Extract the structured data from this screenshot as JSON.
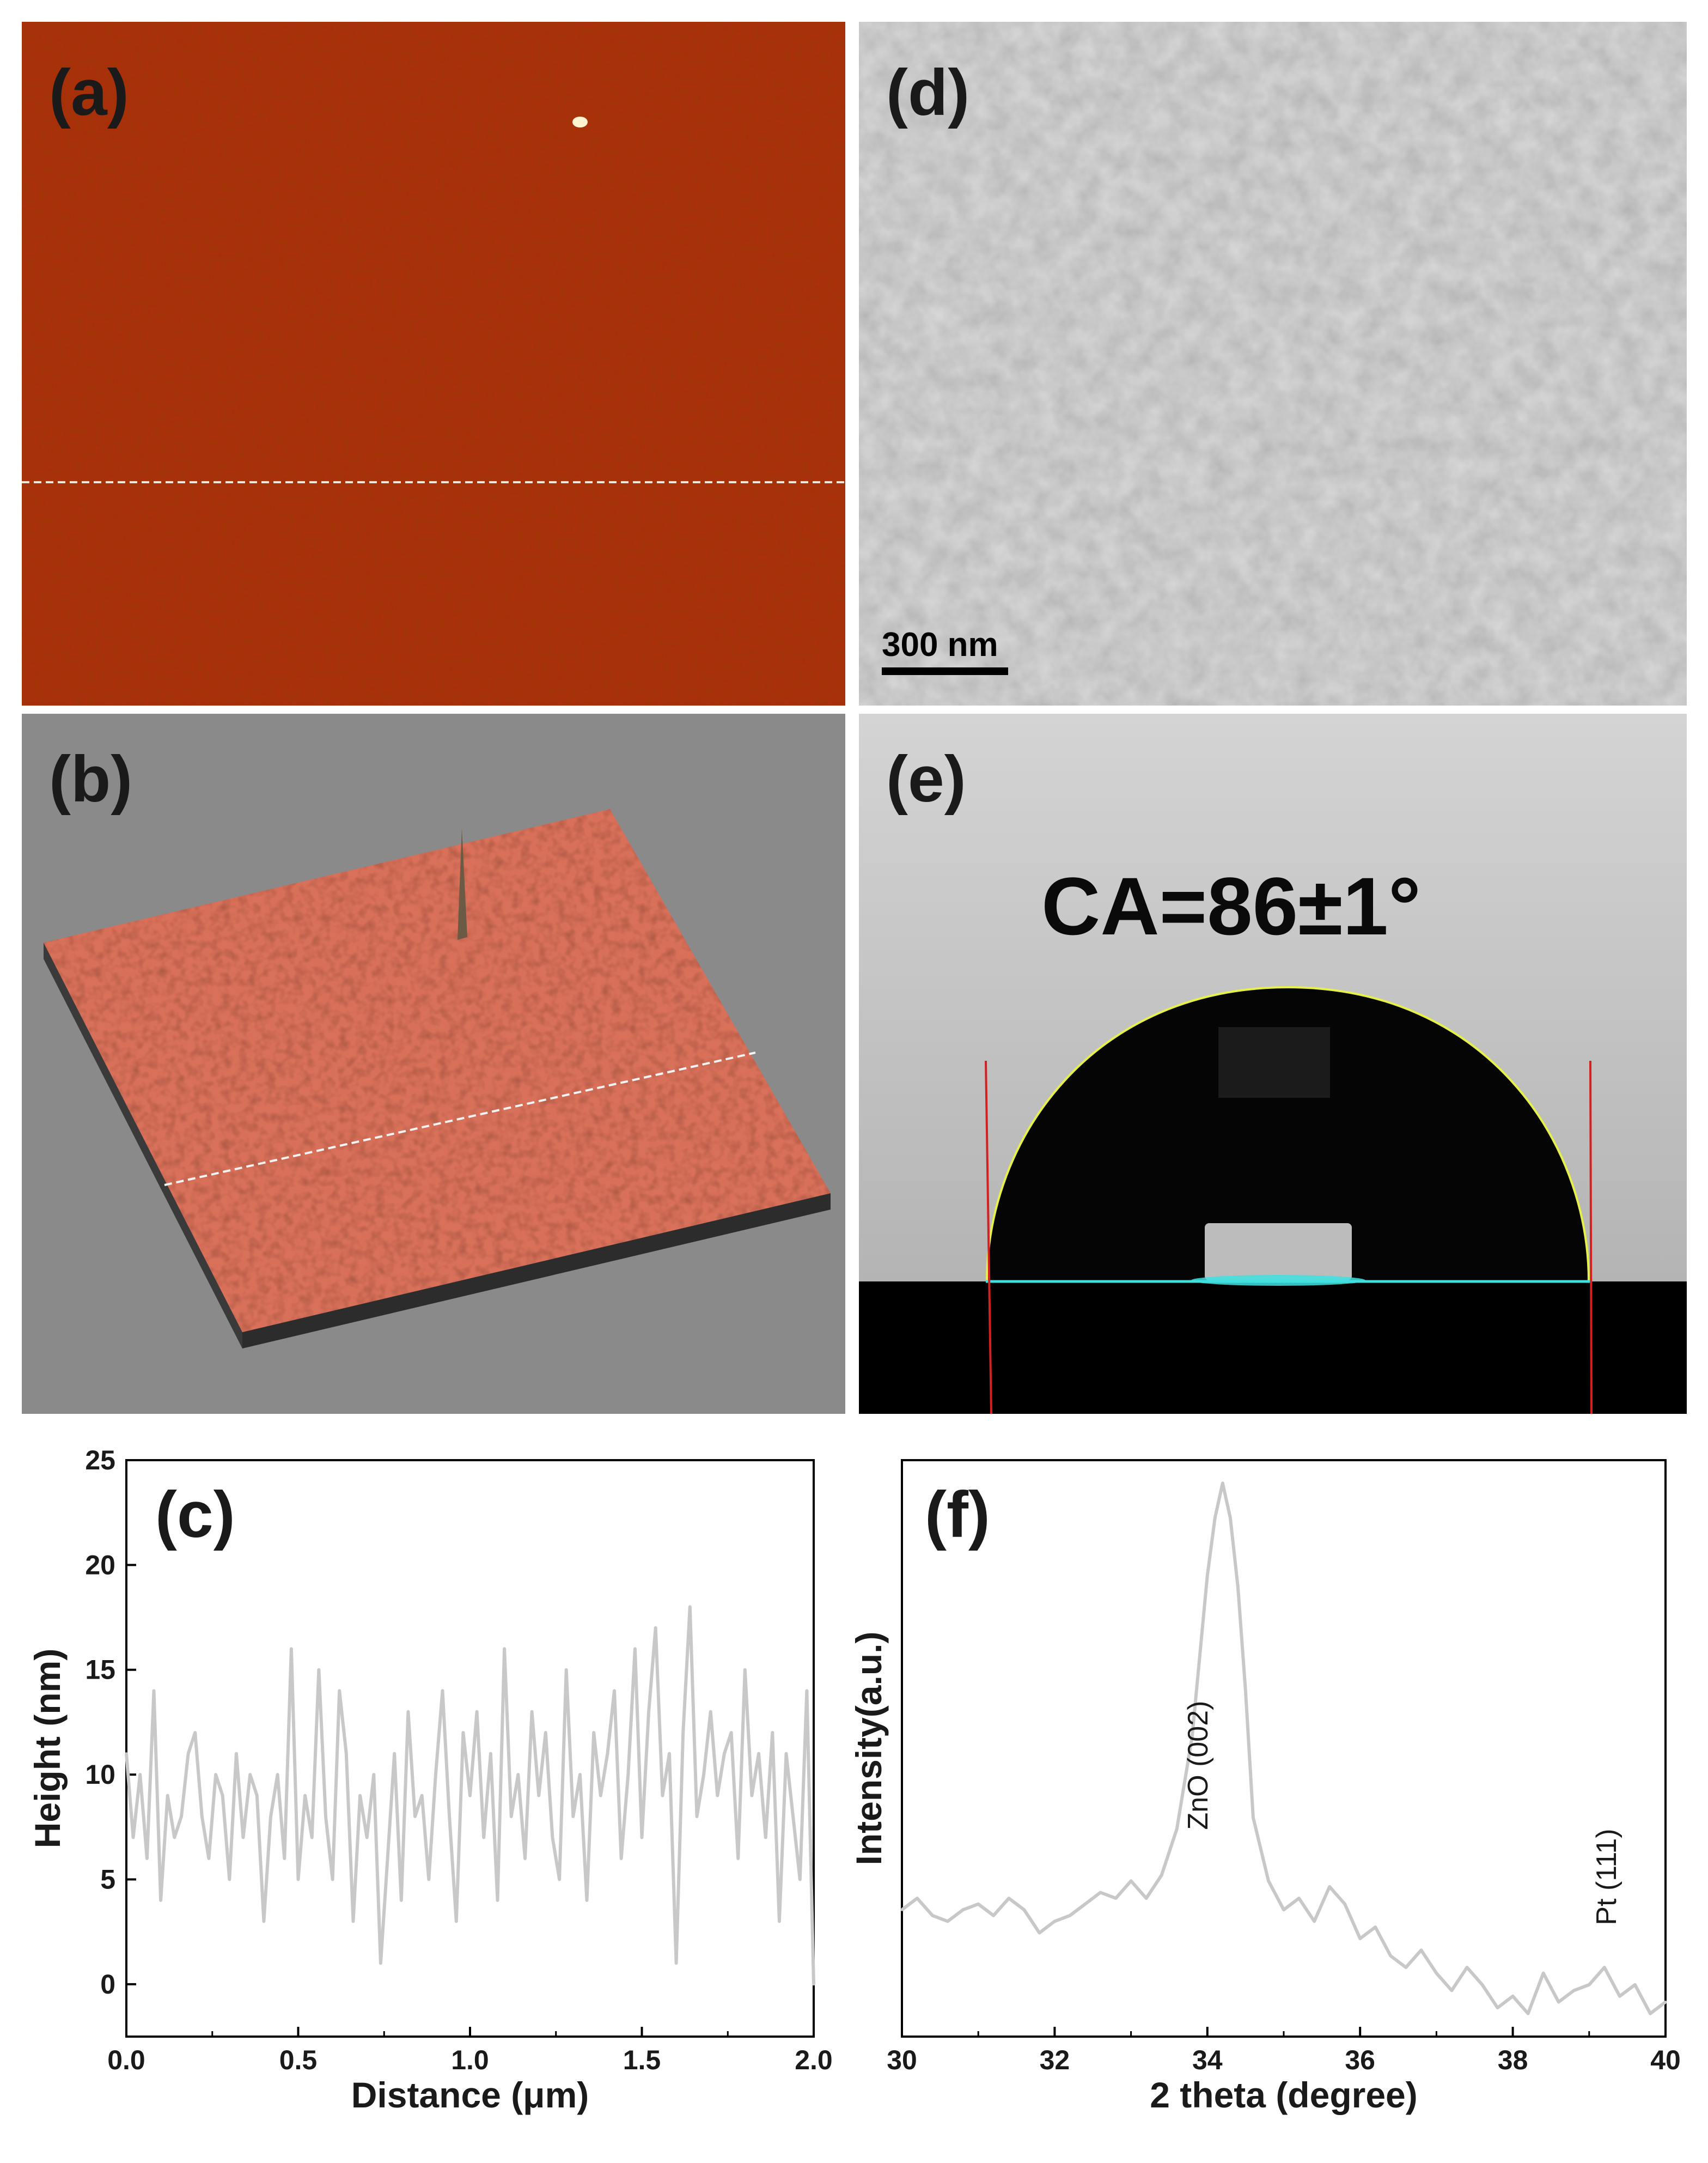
{
  "panels": {
    "a": {
      "label": "(a)"
    },
    "b": {
      "label": "(b)"
    },
    "c": {
      "label": "(c)"
    },
    "d": {
      "label": "(d)",
      "scale_bar": "300 nm"
    },
    "e": {
      "label": "(e)",
      "annotation": "CA=86±1°"
    },
    "f": {
      "label": "(f)"
    }
  },
  "colors": {
    "afm_background": "#a8300a",
    "afm_3d_gray": "#8a8a8a",
    "afm_3d_surface": "#d9705a",
    "sem_gray": "#8f8f8f",
    "droplet_bg": "#c4c4c4",
    "line_series": "#c8c8c8"
  },
  "chart_data": [
    {
      "type": "line",
      "panel": "c",
      "xlabel": "Distance (μm)",
      "ylabel": "Height (nm)",
      "xlim": [
        0.0,
        2.0
      ],
      "ylim": [
        -2.5,
        25
      ],
      "xticks": [
        "0.0",
        "0.5",
        "1.0",
        "1.5",
        "2.0"
      ],
      "yticks": [
        "0",
        "5",
        "10",
        "15",
        "20",
        "25"
      ],
      "x": [
        0.0,
        0.02,
        0.04,
        0.06,
        0.08,
        0.1,
        0.12,
        0.14,
        0.16,
        0.18,
        0.2,
        0.22,
        0.24,
        0.26,
        0.28,
        0.3,
        0.32,
        0.34,
        0.36,
        0.38,
        0.4,
        0.42,
        0.44,
        0.46,
        0.48,
        0.5,
        0.52,
        0.54,
        0.56,
        0.58,
        0.6,
        0.62,
        0.64,
        0.66,
        0.68,
        0.7,
        0.72,
        0.74,
        0.76,
        0.78,
        0.8,
        0.82,
        0.84,
        0.86,
        0.88,
        0.9,
        0.92,
        0.94,
        0.96,
        0.98,
        1.0,
        1.02,
        1.04,
        1.06,
        1.08,
        1.1,
        1.12,
        1.14,
        1.16,
        1.18,
        1.2,
        1.22,
        1.24,
        1.26,
        1.28,
        1.3,
        1.32,
        1.34,
        1.36,
        1.38,
        1.4,
        1.42,
        1.44,
        1.46,
        1.48,
        1.5,
        1.52,
        1.54,
        1.56,
        1.58,
        1.6,
        1.62,
        1.64,
        1.66,
        1.68,
        1.7,
        1.72,
        1.74,
        1.76,
        1.78,
        1.8,
        1.82,
        1.84,
        1.86,
        1.88,
        1.9,
        1.92,
        1.94,
        1.96,
        1.98,
        2.0
      ],
      "y": [
        11,
        7,
        10,
        6,
        14,
        4,
        9,
        7,
        8,
        11,
        12,
        8,
        6,
        10,
        9,
        5,
        11,
        7,
        10,
        9,
        3,
        8,
        10,
        6,
        16,
        5,
        9,
        7,
        15,
        8,
        5,
        14,
        11,
        3,
        9,
        7,
        10,
        1,
        6,
        11,
        4,
        13,
        8,
        9,
        5,
        10,
        14,
        8,
        3,
        12,
        9,
        13,
        7,
        11,
        4,
        16,
        8,
        10,
        6,
        13,
        9,
        12,
        7,
        5,
        15,
        8,
        10,
        4,
        12,
        9,
        11,
        14,
        6,
        10,
        16,
        7,
        13,
        17,
        9,
        11,
        1,
        12,
        18,
        8,
        10,
        13,
        9,
        11,
        12,
        6,
        15,
        9,
        11,
        7,
        12,
        3,
        11,
        8,
        5,
        14,
        0
      ]
    },
    {
      "type": "line",
      "panel": "f",
      "xlabel": "2 theta (degree)",
      "ylabel": "Intensity(a.u.)",
      "xlim": [
        30,
        40
      ],
      "ylim": [
        0,
        100
      ],
      "xticks": [
        "30",
        "32",
        "34",
        "36",
        "38",
        "40"
      ],
      "annotations": [
        {
          "text": "ZnO (002)",
          "x": 34.0
        },
        {
          "text": "Pt (111)",
          "x": 39.35
        }
      ],
      "x": [
        30.0,
        30.2,
        30.4,
        30.6,
        30.8,
        31.0,
        31.2,
        31.4,
        31.6,
        31.8,
        32.0,
        32.2,
        32.4,
        32.6,
        32.8,
        33.0,
        33.2,
        33.4,
        33.6,
        33.8,
        34.0,
        34.1,
        34.2,
        34.3,
        34.4,
        34.5,
        34.6,
        34.8,
        35.0,
        35.2,
        35.4,
        35.6,
        35.8,
        36.0,
        36.2,
        36.4,
        36.6,
        36.8,
        37.0,
        37.2,
        37.4,
        37.6,
        37.8,
        38.0,
        38.2,
        38.4,
        38.6,
        38.8,
        39.0,
        39.2,
        39.4,
        39.6,
        39.8,
        40.0
      ],
      "y": [
        22,
        24,
        21,
        20,
        22,
        23,
        21,
        24,
        22,
        18,
        20,
        21,
        23,
        25,
        24,
        27,
        24,
        28,
        36,
        52,
        80,
        90,
        96,
        90,
        78,
        60,
        38,
        27,
        22,
        24,
        20,
        26,
        23,
        17,
        19,
        14,
        12,
        15,
        11,
        8,
        12,
        9,
        5,
        7,
        4,
        11,
        6,
        8,
        9,
        12,
        7,
        9,
        4,
        6
      ]
    }
  ]
}
